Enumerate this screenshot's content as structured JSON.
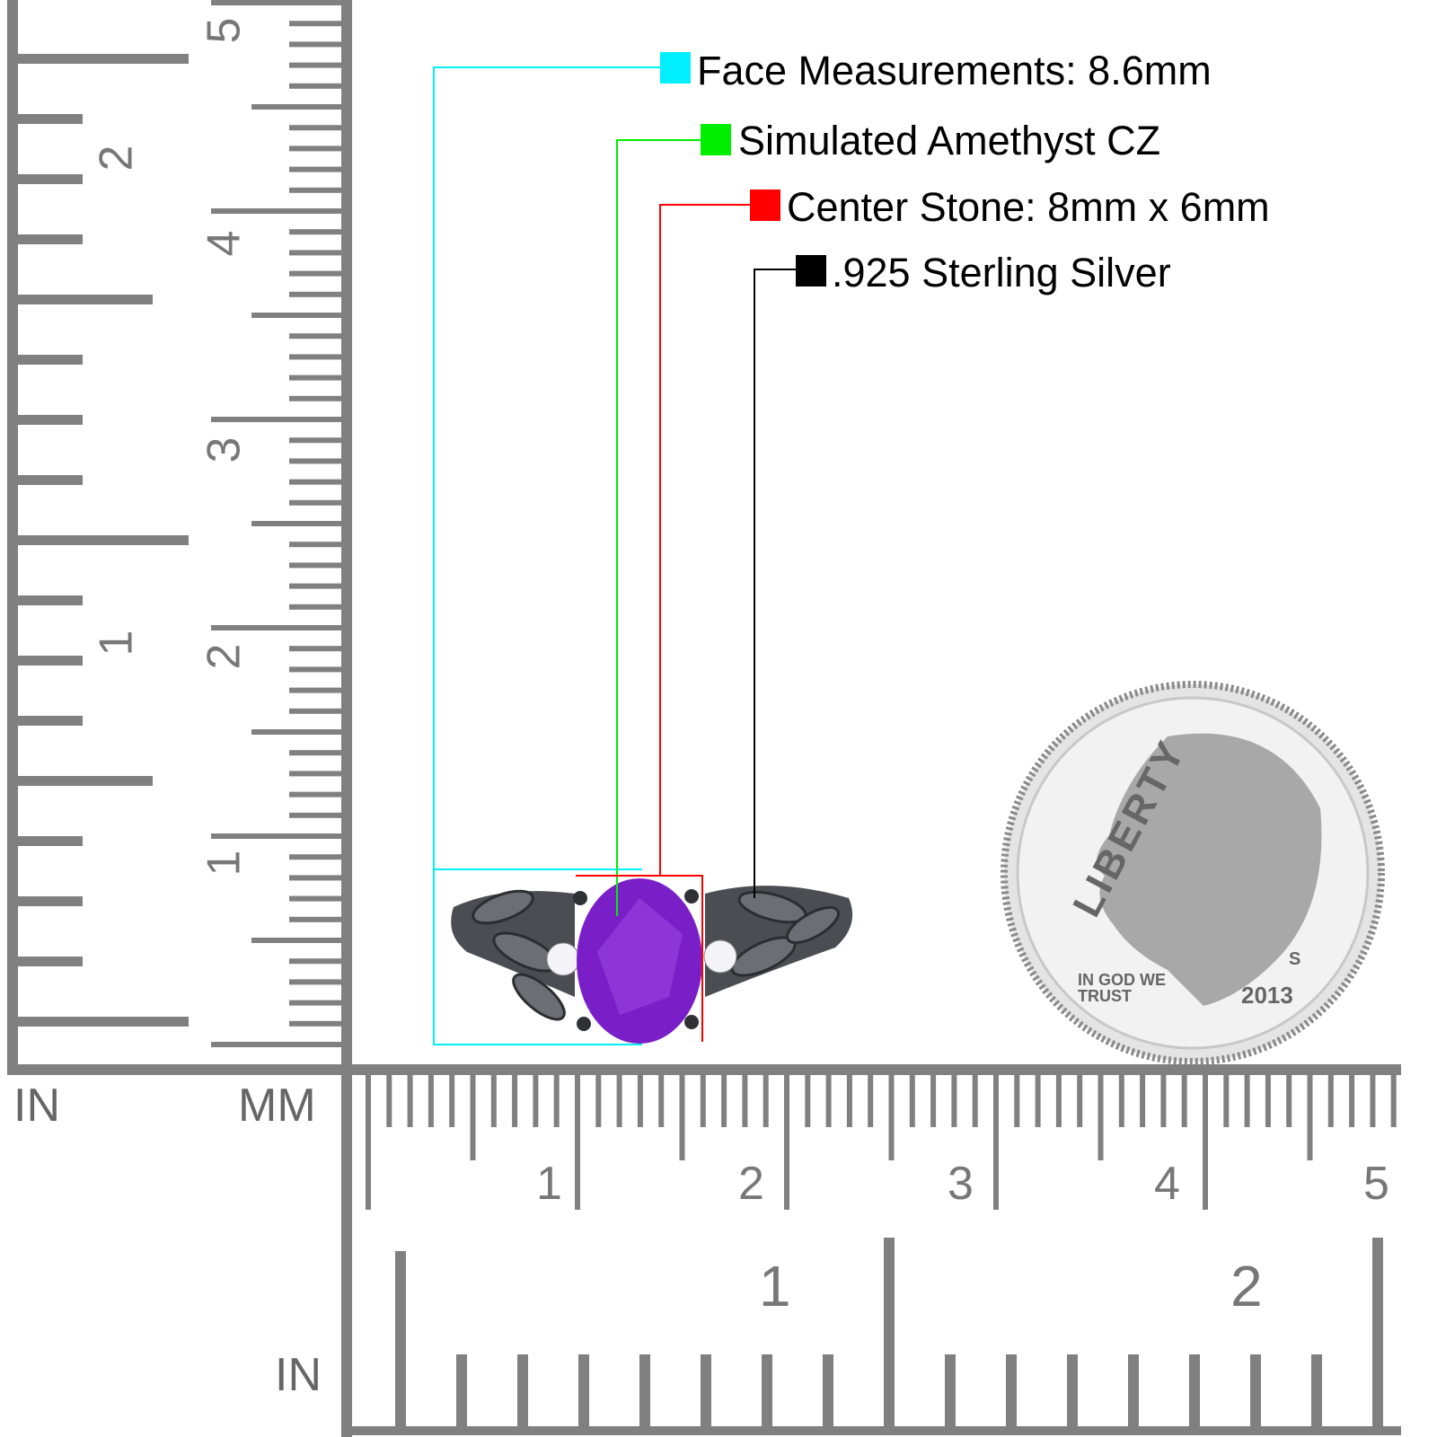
{
  "legend": [
    {
      "label": "Face Measurements: 8.6mm",
      "color": "#00f0ff"
    },
    {
      "label": "Simulated Amethyst CZ",
      "color": "#00ee00"
    },
    {
      "label": "Center Stone: 8mm x 6mm",
      "color": "#ff0000"
    },
    {
      "label": ".925 Sterling Silver",
      "color": "#000000"
    }
  ],
  "rulers": {
    "left_unit": "IN",
    "vertical_mm_unit": "MM",
    "bottom_inch_unit": "IN",
    "vertical_inch_labels": [
      "1",
      "2"
    ],
    "vertical_mm_labels": [
      "1",
      "2",
      "3",
      "4",
      "5"
    ],
    "horizontal_mm_labels": [
      "1",
      "2",
      "3",
      "4",
      "5"
    ],
    "horizontal_inch_labels": [
      "1",
      "2"
    ],
    "tick_color": "#808080"
  },
  "product": {
    "stone_color": "#7a1fc8",
    "metal_color": "#4a4d52"
  },
  "coin": {
    "motto": "LIBERTY",
    "trust": "IN GOD WE TRUST",
    "mint": "S",
    "year": "2013"
  }
}
